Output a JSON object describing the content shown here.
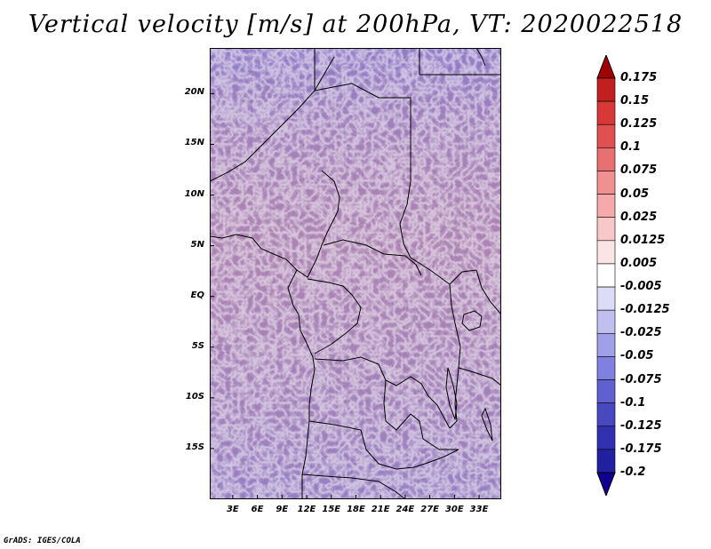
{
  "title": "Vertical velocity [m/s] at 200hPa, VT: 2020022518",
  "lat_labels": [
    "20N",
    "15N",
    "10N",
    "5N",
    "EQ",
    "5S",
    "10S",
    "15S"
  ],
  "lon_labels": [
    "3E",
    "6E",
    "9E",
    "12E",
    "15E",
    "18E",
    "21E",
    "24E",
    "27E",
    "30E",
    "33E"
  ],
  "colorbar": {
    "labels": [
      "0.175",
      "0.15",
      "0.125",
      "0.1",
      "0.075",
      "0.05",
      "0.025",
      "0.0125",
      "0.005",
      "-0.005",
      "-0.0125",
      "-0.025",
      "-0.05",
      "-0.075",
      "-0.1",
      "-0.125",
      "-0.175",
      "-0.2"
    ],
    "colors": [
      "#a00000",
      "#c02020",
      "#d83838",
      "#e05050",
      "#e87070",
      "#f09090",
      "#f4aaaa",
      "#f8c8c8",
      "#fce4e4",
      "#ffffff",
      "#dcdcf8",
      "#c0c0f0",
      "#a0a0e8",
      "#8080e0",
      "#6060d0",
      "#4848c0",
      "#3030b0",
      "#2020a0",
      "#100090"
    ]
  },
  "footer": "GrADS: IGES/COLA"
}
